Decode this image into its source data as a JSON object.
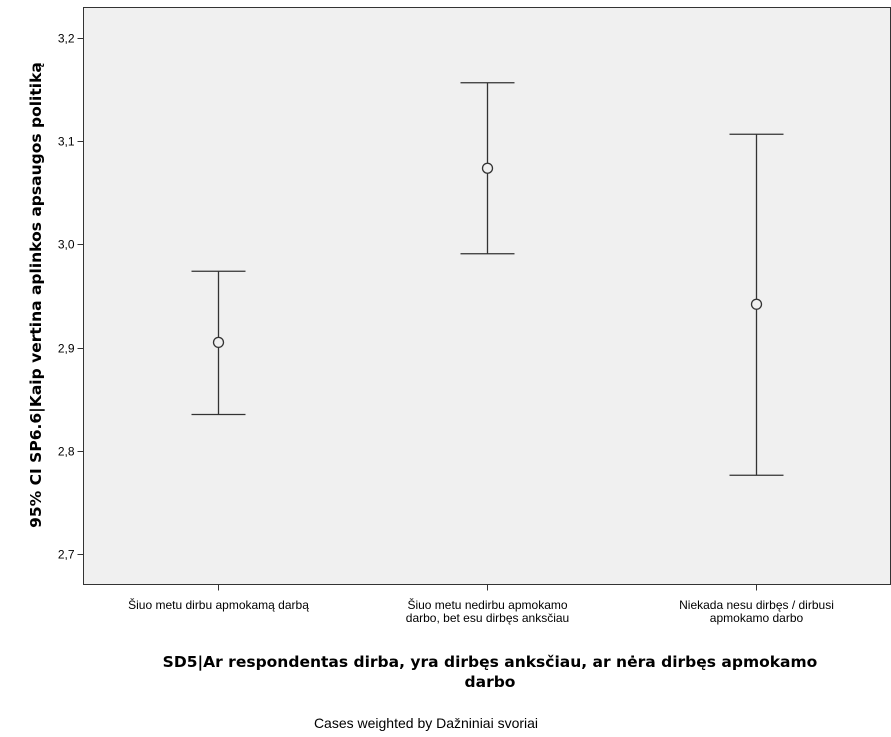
{
  "chart_data": {
    "type": "errorbar",
    "categories": [
      [
        "Šiuo metu dirbu apmokamą darbą"
      ],
      [
        "Šiuo metu nedirbu apmokamo",
        "darbo, bet esu dirbęs anksčiau"
      ],
      [
        "Niekada nesu dirbęs / dirbusi",
        "apmokamo darbo"
      ]
    ],
    "series": [
      {
        "mean": [
          2.905,
          3.074,
          2.942
        ],
        "lower": [
          2.835,
          2.991,
          2.776
        ],
        "upper": [
          2.974,
          3.157,
          3.107
        ]
      }
    ],
    "ylim": [
      2.67,
      3.23
    ],
    "yticks": [
      "2,7",
      "2,8",
      "2,9",
      "3,0",
      "3,1",
      "3,2"
    ],
    "ylabel": "95% CI SP6.6|Kaip vertina aplinkos apsaugos politiką",
    "xlabel_lines": [
      "SD5|Ar respondentas dirba, yra dirbęs anksčiau, ar nėra dirbęs apmokamo",
      "darbo"
    ],
    "footnote": "Cases weighted by Dažniniai svoriai",
    "grid": false,
    "plot_background": "#f0f0f0"
  }
}
